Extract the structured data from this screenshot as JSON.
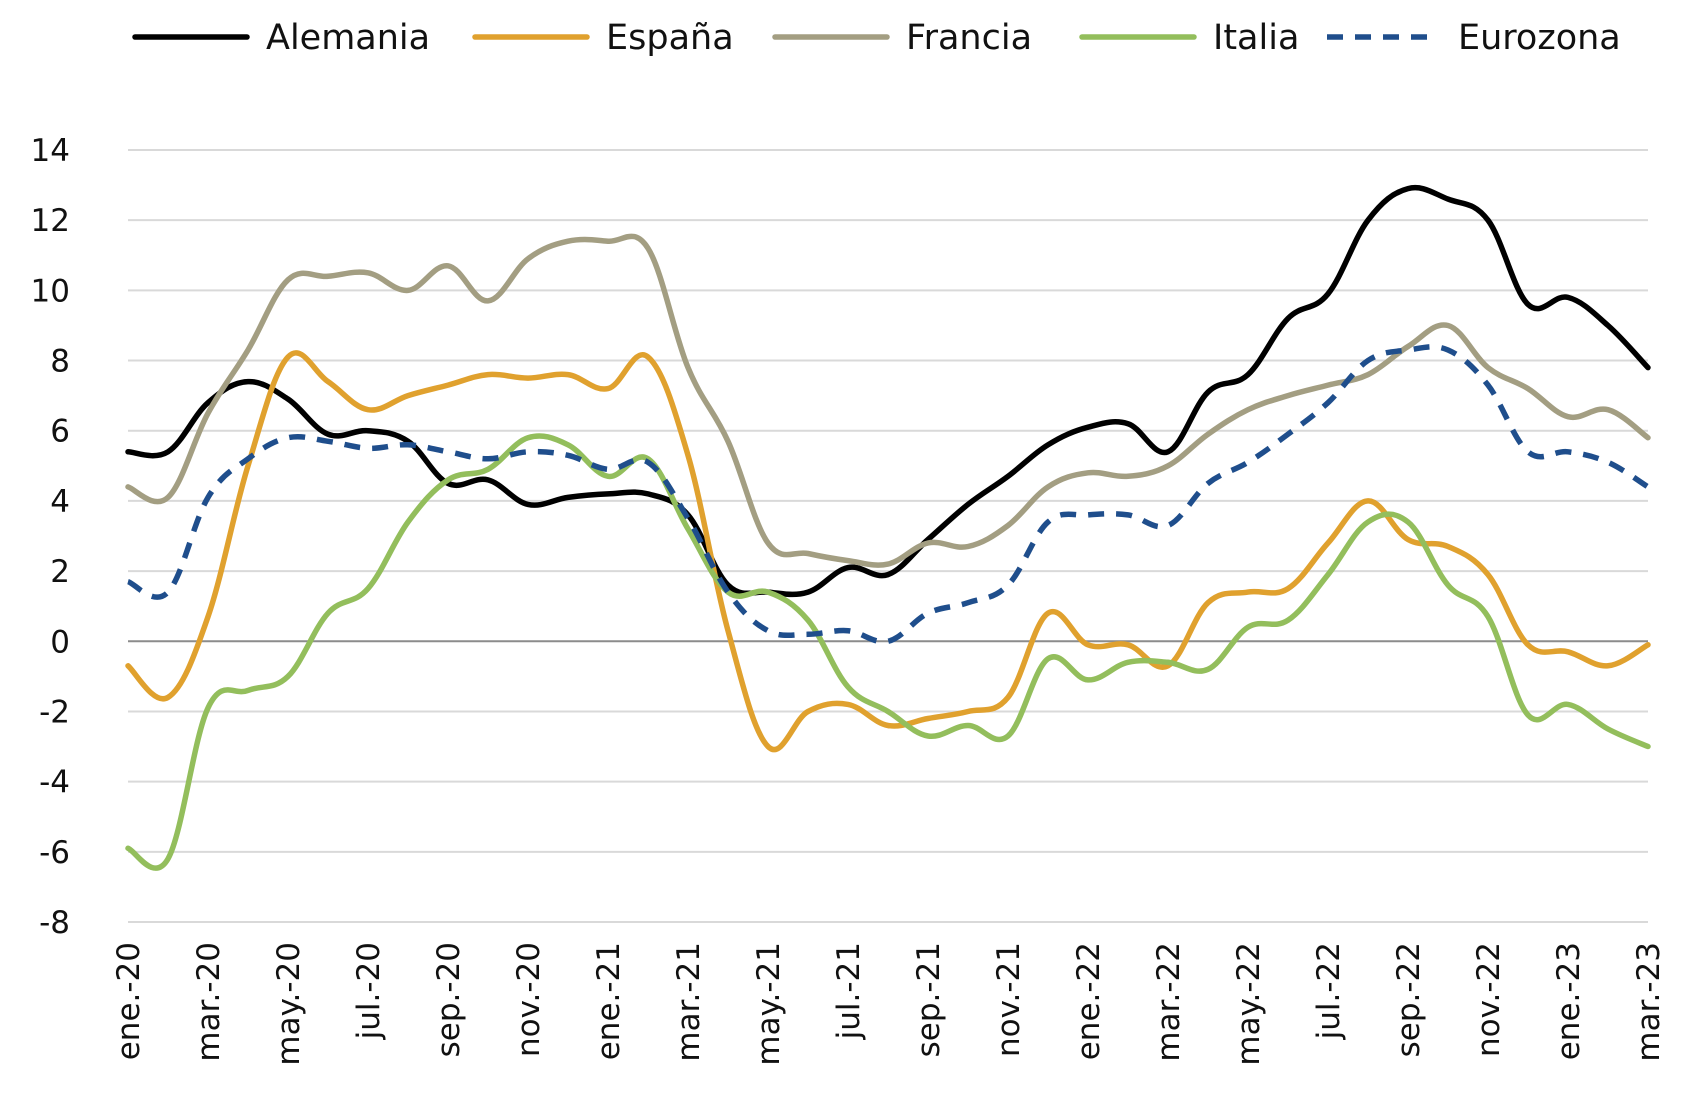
{
  "chart_data": {
    "type": "line",
    "title": "",
    "xlabel": "",
    "ylabel": "",
    "ylim": [
      -8,
      14
    ],
    "yticks": [
      -8,
      -6,
      -4,
      -2,
      0,
      2,
      4,
      6,
      8,
      10,
      12,
      14
    ],
    "ytick_labels": [
      "-8",
      "-6",
      "-4",
      "-2",
      "0",
      "2",
      "4",
      "6",
      "8",
      "10",
      "12",
      "14"
    ],
    "grid": "horizontal",
    "zero_line": true,
    "legend_position": "top",
    "x": [
      "ene.-20",
      "feb.-20",
      "mar.-20",
      "abr.-20",
      "may.-20",
      "jun.-20",
      "jul.-20",
      "ago.-20",
      "sep.-20",
      "oct.-20",
      "nov.-20",
      "dic.-20",
      "ene.-21",
      "feb.-21",
      "mar.-21",
      "abr.-21",
      "may.-21",
      "jun.-21",
      "jul.-21",
      "ago.-21",
      "sep.-21",
      "oct.-21",
      "nov.-21",
      "dic.-21",
      "ene.-22",
      "feb.-22",
      "mar.-22",
      "abr.-22",
      "may.-22",
      "jun.-22",
      "jul.-22",
      "ago.-22",
      "sep.-22",
      "oct.-22",
      "nov.-22",
      "dic.-22",
      "ene.-23",
      "feb.-23",
      "mar.-23"
    ],
    "xtick_labels": [
      "ene.-20",
      "mar.-20",
      "may.-20",
      "jul.-20",
      "sep.-20",
      "nov.-20",
      "ene.-21",
      "mar.-21",
      "may.-21",
      "jul.-21",
      "sep.-21",
      "nov.-21",
      "ene.-22",
      "mar.-22",
      "may.-22",
      "jul.-22",
      "sep.-22",
      "nov.-22",
      "ene.-23",
      "mar.-23"
    ],
    "series": [
      {
        "name": "Alemania",
        "color": "#000000",
        "dashed": false,
        "values": [
          5.4,
          5.4,
          6.8,
          7.4,
          6.9,
          5.9,
          6.0,
          5.7,
          4.5,
          4.6,
          3.9,
          4.1,
          4.2,
          4.2,
          3.6,
          1.6,
          1.4,
          1.4,
          2.1,
          1.9,
          2.9,
          3.9,
          4.7,
          5.6,
          6.1,
          6.2,
          5.4,
          7.1,
          7.6,
          9.2,
          9.9,
          12.0,
          12.9,
          12.6,
          12.0,
          9.6,
          9.8,
          9.0,
          7.8
        ]
      },
      {
        "name": "España",
        "color": "#E0A12E",
        "dashed": false,
        "values": [
          -0.7,
          -1.6,
          0.7,
          5.0,
          8.1,
          7.4,
          6.6,
          7.0,
          7.3,
          7.6,
          7.5,
          7.6,
          7.2,
          8.1,
          5.3,
          0.3,
          -3.0,
          -2.0,
          -1.8,
          -2.4,
          -2.2,
          -2.0,
          -1.6,
          0.8,
          -0.1,
          -0.1,
          -0.7,
          1.1,
          1.4,
          1.5,
          2.8,
          4.0,
          2.9,
          2.7,
          1.9,
          -0.1,
          -0.3,
          -0.7,
          -0.1
        ]
      },
      {
        "name": "Francia",
        "color": "#A39E82",
        "dashed": false,
        "values": [
          4.4,
          4.1,
          6.5,
          8.3,
          10.3,
          10.4,
          10.5,
          10.0,
          10.7,
          9.7,
          10.9,
          11.4,
          11.4,
          11.2,
          7.8,
          5.7,
          2.8,
          2.5,
          2.3,
          2.2,
          2.8,
          2.7,
          3.3,
          4.4,
          4.8,
          4.7,
          5.0,
          5.9,
          6.6,
          7.0,
          7.3,
          7.6,
          8.4,
          9.0,
          7.8,
          7.2,
          6.4,
          6.6,
          5.8
        ]
      },
      {
        "name": "Italia",
        "color": "#93BE5C",
        "dashed": false,
        "values": [
          -5.9,
          -6.2,
          -1.9,
          -1.4,
          -1.0,
          0.8,
          1.5,
          3.4,
          4.6,
          4.9,
          5.8,
          5.6,
          4.7,
          5.2,
          3.2,
          1.4,
          1.4,
          0.6,
          -1.3,
          -2.0,
          -2.7,
          -2.4,
          -2.7,
          -0.5,
          -1.1,
          -0.6,
          -0.6,
          -0.8,
          0.4,
          0.6,
          1.9,
          3.4,
          3.4,
          1.6,
          0.7,
          -2.1,
          -1.8,
          -2.5,
          -3.0
        ]
      },
      {
        "name": "Eurozona",
        "color": "#1F4E8C",
        "dashed": true,
        "values": [
          1.7,
          1.4,
          4.1,
          5.2,
          5.8,
          5.7,
          5.5,
          5.6,
          5.4,
          5.2,
          5.4,
          5.3,
          4.9,
          5.1,
          3.5,
          1.4,
          0.3,
          0.2,
          0.3,
          0.0,
          0.8,
          1.1,
          1.6,
          3.4,
          3.6,
          3.6,
          3.3,
          4.5,
          5.1,
          5.9,
          6.8,
          8.0,
          8.3,
          8.3,
          7.3,
          5.4,
          5.4,
          5.1,
          4.4
        ]
      }
    ]
  }
}
